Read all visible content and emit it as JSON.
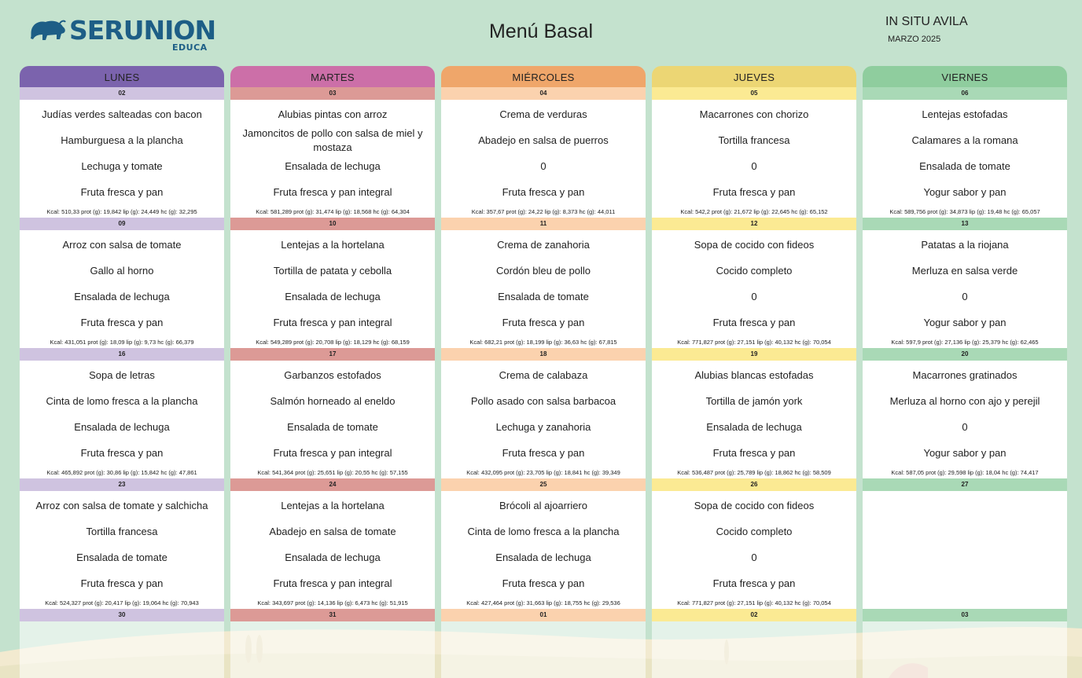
{
  "header": {
    "brand": "SERUNION",
    "brand_sub": "EDUCA",
    "title": "Menú Basal",
    "center": "IN SITU AVILA",
    "month": "MARZO 2025"
  },
  "colors": {
    "background": "#c4e2ce",
    "lunes": "#7b63ad",
    "lunes_light": "#cfc3e0",
    "martes": "#cc6fa8",
    "martes_light": "#dc9a96",
    "miercoles": "#efa66a",
    "miercoles_light": "#fbd2ae",
    "jueves": "#ecd674",
    "jueves_light": "#fbea93",
    "viernes": "#8fcd9e",
    "viernes_light": "#a9d9b6",
    "brand": "#1d5e86"
  },
  "columns": [
    {
      "day": "LUNES",
      "cells": [
        {
          "date": "02",
          "dishes": [
            "Judías verdes salteadas con bacon",
            "Hamburguesa a la plancha",
            "Lechuga y tomate",
            "Fruta fresca y pan"
          ],
          "nutrition": "Kcal: 510,33 prot (g): 19,842 lip (g): 24,449 hc (g): 32,295"
        },
        {
          "date": "09",
          "dishes": [
            "Arroz con salsa de tomate",
            "Gallo al horno",
            "Ensalada de lechuga",
            "Fruta fresca y pan"
          ],
          "nutrition": "Kcal: 431,051 prot (g): 18,09 lip (g): 9,73 hc (g): 66,379"
        },
        {
          "date": "16",
          "dishes": [
            "Sopa de letras",
            "Cinta de lomo fresca a la plancha",
            "Ensalada de lechuga",
            "Fruta fresca y pan"
          ],
          "nutrition": "Kcal: 465,892 prot (g): 30,86 lip (g): 15,842 hc (g): 47,861"
        },
        {
          "date": "23",
          "dishes": [
            "Arroz con salsa de tomate y salchicha",
            "Tortilla francesa",
            "Ensalada de tomate",
            "Fruta fresca y pan"
          ],
          "nutrition": "Kcal: 524,327 prot (g): 20,417 lip (g): 19,064 hc (g): 70,943"
        },
        {
          "date": "30",
          "dishes": [
            "",
            "",
            "",
            ""
          ],
          "nutrition": ""
        }
      ]
    },
    {
      "day": "MARTES",
      "cells": [
        {
          "date": "03",
          "dishes": [
            "Alubias pintas con arroz",
            "Jamoncitos de pollo con salsa de miel y mostaza",
            "Ensalada de lechuga",
            "Fruta fresca y pan integral"
          ],
          "nutrition": "Kcal: 581,289 prot (g): 31,474 lip (g): 18,568 hc (g): 64,304"
        },
        {
          "date": "10",
          "dishes": [
            "Lentejas a la hortelana",
            "Tortilla de patata y cebolla",
            "Ensalada de lechuga",
            "Fruta fresca y pan integral"
          ],
          "nutrition": "Kcal: 549,289 prot (g): 20,708 lip (g): 18,129 hc (g): 68,159"
        },
        {
          "date": "17",
          "dishes": [
            "Garbanzos estofados",
            "Salmón horneado al eneldo",
            "Ensalada de tomate",
            "Fruta fresca y pan integral"
          ],
          "nutrition": "Kcal: 541,364 prot (g): 25,651 lip (g): 20,55 hc (g): 57,155"
        },
        {
          "date": "24",
          "dishes": [
            "Lentejas a la hortelana",
            "Abadejo en salsa de tomate",
            "Ensalada de lechuga",
            "Fruta fresca y pan integral"
          ],
          "nutrition": "Kcal: 343,697 prot (g): 14,136 lip (g): 6,473 hc (g): 51,915"
        },
        {
          "date": "31",
          "dishes": [
            "",
            "",
            "",
            ""
          ],
          "nutrition": ""
        }
      ]
    },
    {
      "day": "MIÉRCOLES",
      "cells": [
        {
          "date": "04",
          "dishes": [
            "Crema de verduras",
            "Abadejo en salsa de puerros",
            "0",
            "Fruta fresca y pan"
          ],
          "nutrition": "Kcal: 357,67 prot (g): 24,22 lip (g): 8,373 hc (g): 44,011"
        },
        {
          "date": "11",
          "dishes": [
            "Crema de zanahoria",
            "Cordón bleu de pollo",
            "Ensalada de tomate",
            "Fruta fresca y pan"
          ],
          "nutrition": "Kcal: 682,21 prot (g): 18,199 lip (g): 36,63 hc (g): 67,815"
        },
        {
          "date": "18",
          "dishes": [
            "Crema de calabaza",
            "Pollo asado con salsa barbacoa",
            "Lechuga y zanahoria",
            "Fruta fresca y pan"
          ],
          "nutrition": "Kcal: 432,095 prot (g): 23,705 lip (g): 18,841 hc (g): 39,349"
        },
        {
          "date": "25",
          "dishes": [
            "Brócoli al ajoarriero",
            "Cinta de lomo fresca a la plancha",
            "Ensalada de lechuga",
            "Fruta fresca y pan"
          ],
          "nutrition": "Kcal: 427,464 prot (g): 31,663 lip (g): 18,755 hc (g): 29,536"
        },
        {
          "date": "01",
          "dishes": [
            "",
            "",
            "",
            ""
          ],
          "nutrition": ""
        }
      ]
    },
    {
      "day": "JUEVES",
      "cells": [
        {
          "date": "05",
          "dishes": [
            "Macarrones con chorizo",
            "Tortilla francesa",
            "0",
            "Fruta fresca y pan"
          ],
          "nutrition": "Kcal: 542,2 prot (g): 21,672 lip (g): 22,645 hc (g): 65,152"
        },
        {
          "date": "12",
          "dishes": [
            "Sopa de cocido con fideos",
            "Cocido completo",
            "0",
            "Fruta fresca y pan"
          ],
          "nutrition": "Kcal: 771,827 prot (g): 27,151 lip (g): 40,132 hc (g): 70,054"
        },
        {
          "date": "19",
          "dishes": [
            "Alubias blancas estofadas",
            "Tortilla de jamón york",
            "Ensalada de lechuga",
            "Fruta fresca y pan"
          ],
          "nutrition": "Kcal: 536,487 prot (g): 25,789 lip (g): 18,862 hc (g): 58,509"
        },
        {
          "date": "26",
          "dishes": [
            "Sopa de cocido con fideos",
            "Cocido completo",
            "0",
            "Fruta fresca y pan"
          ],
          "nutrition": "Kcal: 771,827 prot (g): 27,151 lip (g): 40,132 hc (g): 70,054"
        },
        {
          "date": "02",
          "dishes": [
            "",
            "",
            "",
            ""
          ],
          "nutrition": ""
        }
      ]
    },
    {
      "day": "VIERNES",
      "cells": [
        {
          "date": "06",
          "dishes": [
            "Lentejas estofadas",
            "Calamares a la romana",
            "Ensalada de tomate",
            "Yogur sabor y pan"
          ],
          "nutrition": "Kcal: 589,756 prot (g): 34,873 lip (g): 19,48 hc (g): 65,057"
        },
        {
          "date": "13",
          "dishes": [
            "Patatas a la riojana",
            "Merluza en salsa verde",
            "0",
            "Yogur sabor y pan"
          ],
          "nutrition": "Kcal: 597,9 prot (g): 27,136 lip (g): 25,379 hc (g): 62,465"
        },
        {
          "date": "20",
          "dishes": [
            "Macarrones gratinados",
            "Merluza al horno con ajo y perejil",
            "0",
            "Yogur sabor y pan"
          ],
          "nutrition": "Kcal: 587,05 prot (g): 29,598 lip (g): 18,04 hc (g): 74,417"
        },
        {
          "date": "27",
          "dishes": [
            "",
            "",
            "",
            ""
          ],
          "nutrition": ""
        },
        {
          "date": "03",
          "dishes": [
            "",
            "",
            "",
            ""
          ],
          "nutrition": ""
        }
      ]
    }
  ]
}
